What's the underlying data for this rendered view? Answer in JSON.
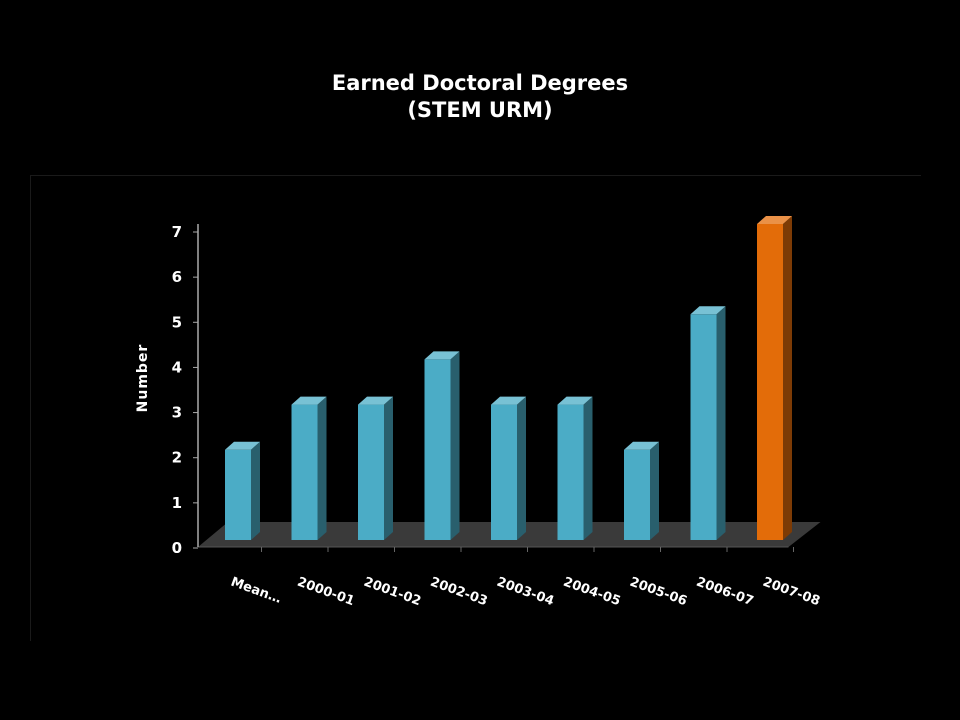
{
  "chart_data": {
    "type": "bar",
    "title": "Earned Doctoral Degrees",
    "subtitle": "(STEM  URM)",
    "xlabel": "",
    "ylabel": "Number",
    "categories": [
      "Mean…",
      "2000-01",
      "2001-02",
      "2002-03",
      "2003-04",
      "2004-05",
      "2005-06",
      "2006-07",
      "2007-08"
    ],
    "values": [
      2,
      3,
      3,
      4,
      3,
      3,
      2,
      5,
      7
    ],
    "ylim": [
      0,
      7
    ],
    "yticks": [
      0,
      1,
      2,
      3,
      4,
      5,
      6,
      7
    ],
    "grid": false,
    "legend": "none",
    "colors": {
      "default": "#4bacc6",
      "highlight": "#e36c09",
      "highlight_category": "2007-08",
      "floor": "#3a3a3a",
      "axis": "#aaaaaa"
    }
  }
}
